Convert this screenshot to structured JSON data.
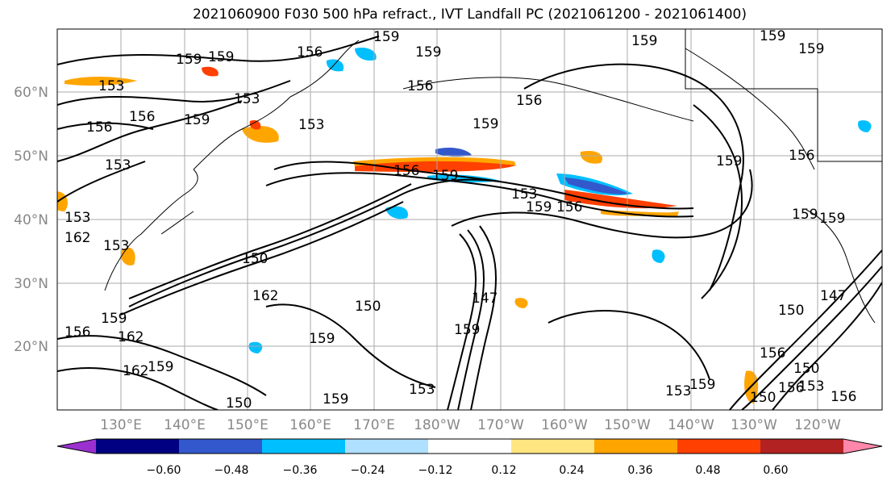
{
  "title": "2021060900 F030 500 hPa refract., IVT Landfall PC (2021061200 - 2021061400)",
  "lat_labels": [
    "60°N",
    "50°N",
    "40°N",
    "30°N",
    "20°N"
  ],
  "lon_labels": [
    "130°E",
    "140°E",
    "150°E",
    "160°E",
    "170°E",
    "180°W",
    "170°W",
    "160°W",
    "150°W",
    "140°W",
    "130°W",
    "120°W"
  ],
  "colorbar": {
    "ticks": [
      "−0.60",
      "−0.48",
      "−0.36",
      "−0.24",
      "−0.12",
      "0.12",
      "0.24",
      "0.36",
      "0.48",
      "0.60"
    ],
    "colors": [
      "#9b30d0",
      "#000080",
      "#3358cc",
      "#00bfff",
      "#b0e0ff",
      "#ffffff",
      "#ffe680",
      "#ffa500",
      "#ff4000",
      "#b22222",
      "#ff88aa"
    ]
  },
  "contour_labels": [
    "159",
    "159",
    "156",
    "159",
    "159",
    "159",
    "159",
    "156",
    "153",
    "153",
    "156",
    "159",
    "153",
    "156",
    "156",
    "159",
    "159",
    "156",
    "153",
    "153",
    "159",
    "156",
    "153",
    "159",
    "156",
    "159",
    "159",
    "162",
    "153",
    "150",
    "162",
    "159",
    "150",
    "159",
    "147",
    "159",
    "147",
    "156",
    "162",
    "159",
    "156",
    "150",
    "150",
    "153",
    "153",
    "159",
    "159",
    "150",
    "156",
    "153",
    "156",
    "150",
    "162",
    "159"
  ]
}
